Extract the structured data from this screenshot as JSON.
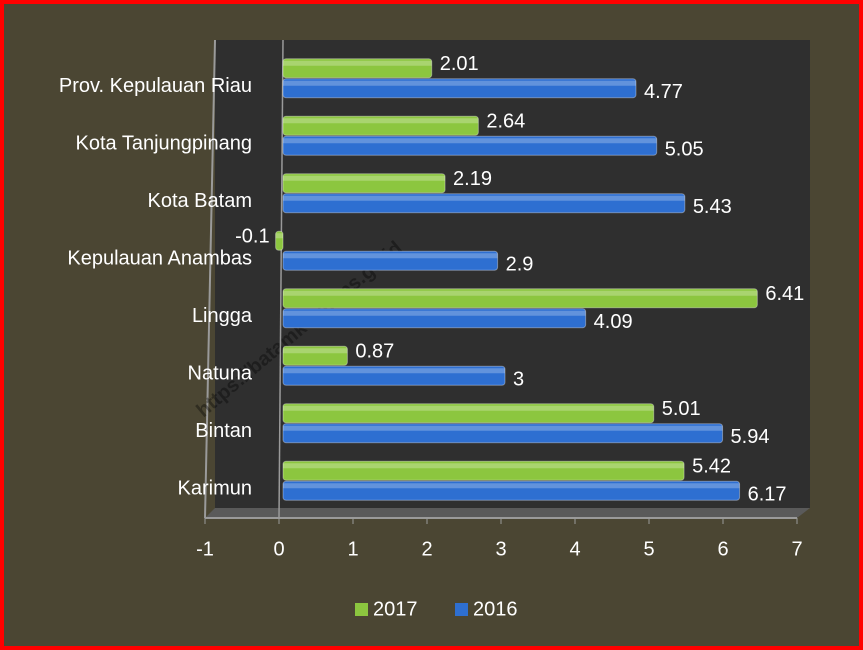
{
  "watermark": "https://batamkota.bps.go.id",
  "chart_data": {
    "type": "bar",
    "orientation": "horizontal",
    "categories": [
      "Prov. Kepulauan Riau",
      "Kota Tanjungpinang",
      "Kota Batam",
      "Kepulauan Anambas",
      "Lingga",
      "Natuna",
      "Bintan",
      "Karimun"
    ],
    "series": [
      {
        "name": "2017",
        "color": "#8cc63f",
        "values": [
          2.01,
          2.64,
          2.19,
          -0.1,
          6.41,
          0.87,
          5.01,
          5.42
        ]
      },
      {
        "name": "2016",
        "color": "#2e6fd1",
        "values": [
          4.77,
          5.05,
          5.43,
          2.9,
          4.09,
          3,
          5.94,
          6.17
        ]
      }
    ],
    "xlim": [
      -1,
      7
    ],
    "xticks": [
      -1,
      0,
      1,
      2,
      3,
      4,
      5,
      6,
      7
    ],
    "legend": "bottom"
  }
}
